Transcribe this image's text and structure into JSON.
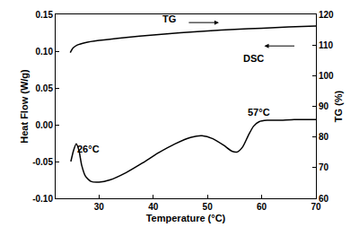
{
  "chart_data": {
    "type": "line",
    "x_label": "Temperature (°C)",
    "y_label": "Heat Flow (W/g)",
    "y2_label": "TG (%)",
    "xlim": [
      22,
      70
    ],
    "xticks": [
      30,
      40,
      50,
      60,
      70
    ],
    "ylim": [
      -0.1,
      0.15
    ],
    "yticks": [
      {
        "value": -0.1,
        "label": "-0.10"
      },
      {
        "value": -0.05,
        "label": "-0.05"
      },
      {
        "value": 0,
        "label": "0.00"
      },
      {
        "value": 0.05,
        "label": "0.05"
      },
      {
        "value": 0.1,
        "label": "0.10"
      },
      {
        "value": 0.15,
        "label": "0.15"
      }
    ],
    "y2lim": [
      60,
      120
    ],
    "y2ticks": [
      60,
      70,
      80,
      90,
      100,
      110,
      120
    ],
    "grid": false,
    "series": [
      {
        "name": "DSC",
        "color": "#000000",
        "axis": "y",
        "x": [
          24.8,
          25.3,
          25.8,
          26.3,
          26.8,
          27.5,
          28.5,
          30,
          32,
          35,
          38,
          41,
          44,
          47,
          49,
          51,
          53,
          54.5,
          55.5,
          56.5,
          57.5,
          58.5,
          59.5,
          61,
          63,
          66,
          70
        ],
        "values": [
          -0.05,
          -0.035,
          -0.026,
          -0.035,
          -0.055,
          -0.07,
          -0.077,
          -0.078,
          -0.075,
          -0.065,
          -0.052,
          -0.038,
          -0.026,
          -0.017,
          -0.015,
          -0.019,
          -0.028,
          -0.036,
          -0.037,
          -0.03,
          -0.015,
          -0.002,
          0.004,
          0.006,
          0.006,
          0.007,
          0.007
        ]
      },
      {
        "name": "TG",
        "color": "#000000",
        "axis": "y2",
        "x": [
          24.7,
          25.2,
          26,
          27.5,
          30,
          35,
          40,
          45,
          50,
          55,
          60,
          65,
          70
        ],
        "values": [
          107.5,
          109,
          110,
          110.8,
          111.5,
          112.5,
          113.3,
          114,
          114.6,
          115.1,
          115.5,
          115.9,
          116.2
        ]
      }
    ],
    "annotations": [
      {
        "text": "TG",
        "x": 43,
        "y": 118.5,
        "axis": "y2"
      },
      {
        "text": "DSC",
        "x": 58.5,
        "y": 0.09,
        "axis": "y"
      },
      {
        "text": "26°C",
        "x": 28,
        "y": -0.033,
        "axis": "y"
      },
      {
        "text": "57°C",
        "x": 59.5,
        "y": 0.017,
        "axis": "y"
      }
    ]
  }
}
